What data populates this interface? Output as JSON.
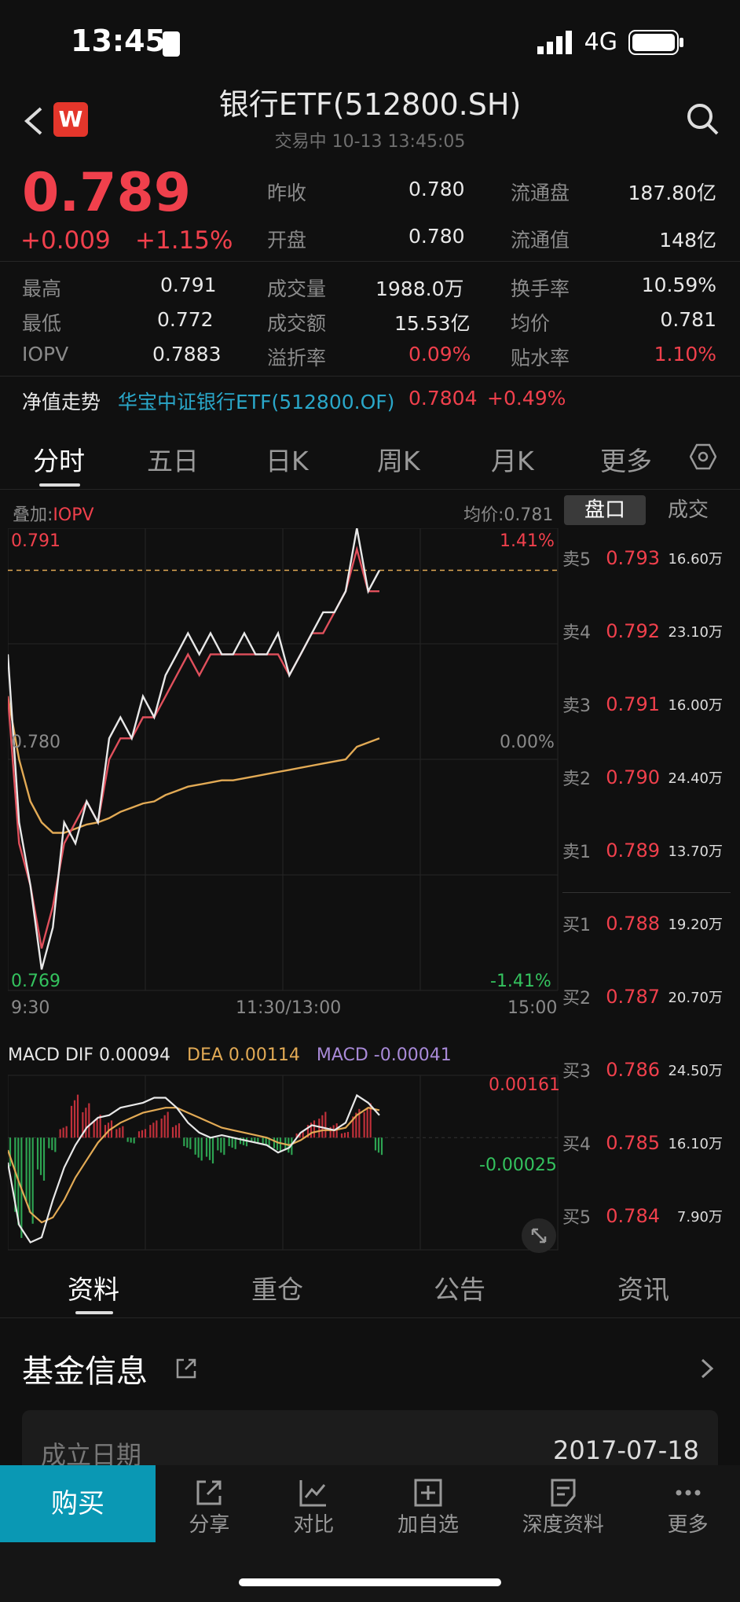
{
  "status": {
    "time": "13:45",
    "network": "4G"
  },
  "header": {
    "title": "银行ETF(512800.SH)",
    "subtitle": "交易中  10-13 13:45:05",
    "badge": "W"
  },
  "quote": {
    "price": "0.789",
    "change": "+0.009",
    "change_pct": "+1.15%",
    "fields": [
      {
        "label": "昨收",
        "value": "0.780",
        "label2": "流通盘",
        "value2": "187.80亿"
      },
      {
        "label": "开盘",
        "value": "0.780",
        "label2": "流通值",
        "value2": "148亿"
      }
    ],
    "grid": [
      {
        "l1": "最高",
        "v1": "0.791",
        "l2": "成交量",
        "v2": "1988.0万",
        "l3": "换手率",
        "v3": "10.59%"
      },
      {
        "l1": "最低",
        "v1": "0.772",
        "l2": "成交额",
        "v2": "15.53亿",
        "l3": "均价",
        "v3": "0.781"
      },
      {
        "l1": "IOPV",
        "v1": "0.7883",
        "l2": "溢折率",
        "v2": "0.09%",
        "l3": "贴水率",
        "v3": "1.10%"
      }
    ]
  },
  "nav_value": {
    "label": "净值走势",
    "fund": "华宝中证银行ETF(512800.OF)",
    "value": "0.7804",
    "pct": "+0.49%"
  },
  "chart_tabs": [
    "分时",
    "五日",
    "日K",
    "周K",
    "月K",
    "更多"
  ],
  "chart_header": {
    "overlay_prefix": "叠加:",
    "overlay": "IOPV",
    "avg": "均价:0.781"
  },
  "side_tabs": [
    "盘口",
    "成交"
  ],
  "chart_labels": {
    "top_price": "0.791",
    "top_pct": "1.41%",
    "mid_price": "0.780",
    "mid_pct": "0.00%",
    "bot_price": "0.769",
    "bot_pct": "-1.41%",
    "x0": "9:30",
    "x1": "11:30/13:00",
    "x2": "15:00"
  },
  "macd": {
    "dif": "MACD DIF 0.00094",
    "dea": "DEA 0.00114",
    "macd": "MACD -0.00041",
    "top": "0.00161",
    "bot": "-0.00025"
  },
  "orderbook": [
    {
      "label": "卖5",
      "price": "0.793",
      "vol": "16.60万"
    },
    {
      "label": "卖4",
      "price": "0.792",
      "vol": "23.10万"
    },
    {
      "label": "卖3",
      "price": "0.791",
      "vol": "16.00万"
    },
    {
      "label": "卖2",
      "price": "0.790",
      "vol": "24.40万"
    },
    {
      "label": "卖1",
      "price": "0.789",
      "vol": "13.70万"
    },
    {
      "label": "买1",
      "price": "0.788",
      "vol": "19.20万"
    },
    {
      "label": "买2",
      "price": "0.787",
      "vol": "20.70万"
    },
    {
      "label": "买3",
      "price": "0.786",
      "vol": "24.50万"
    },
    {
      "label": "买4",
      "price": "0.785",
      "vol": "16.10万"
    },
    {
      "label": "买5",
      "price": "0.784",
      "vol": "7.90万"
    }
  ],
  "info_tabs": [
    "资料",
    "重仓",
    "公告",
    "资讯"
  ],
  "fund_info": {
    "title": "基金信息",
    "est_label": "成立日期",
    "est_value": "2017-07-18"
  },
  "bottom_bar": {
    "buy": "购买",
    "items": [
      "分享",
      "对比",
      "加自选",
      "深度资料",
      "更多"
    ]
  },
  "chart_data": {
    "type": "line",
    "title": "",
    "x_range": [
      "9:30",
      "15:00"
    ],
    "ylim": [
      0.769,
      0.791
    ],
    "reference": 0.78,
    "series": [
      {
        "name": "",
        "color": "#e8e8e8",
        "values": [
          0.785,
          0.777,
          0.774,
          0.77,
          0.772,
          0.777,
          0.776,
          0.778,
          0.777,
          0.781,
          0.782,
          0.781,
          0.783,
          0.782,
          0.784,
          0.785,
          0.786,
          0.785,
          0.786,
          0.785,
          0.785,
          0.786,
          0.785,
          0.785,
          0.786,
          0.784,
          0.785,
          0.786,
          0.787,
          0.787,
          0.788,
          0.791,
          0.788,
          0.789
        ]
      },
      {
        "name": "IOPV",
        "color": "#e0505c",
        "values": [
          0.783,
          0.776,
          0.774,
          0.771,
          0.773,
          0.776,
          0.777,
          0.778,
          0.777,
          0.78,
          0.781,
          0.781,
          0.782,
          0.782,
          0.783,
          0.784,
          0.785,
          0.784,
          0.785,
          0.785,
          0.785,
          0.785,
          0.785,
          0.785,
          0.785,
          0.784,
          0.785,
          0.786,
          0.786,
          0.787,
          0.788,
          0.79,
          0.788,
          0.788
        ]
      },
      {
        "name": "",
        "color": "#e2aa55",
        "values": [
          0.783,
          0.78,
          0.778,
          0.777,
          0.7765,
          0.7765,
          0.7767,
          0.7769,
          0.777,
          0.7772,
          0.7775,
          0.7777,
          0.7779,
          0.778,
          0.7783,
          0.7785,
          0.7787,
          0.7788,
          0.7789,
          0.779,
          0.779,
          0.7791,
          0.7792,
          0.7793,
          0.7794,
          0.7795,
          0.7796,
          0.7797,
          0.7798,
          0.7799,
          0.78,
          0.7806,
          0.7808,
          0.781
        ]
      }
    ]
  },
  "macd_data": {
    "type": "bar",
    "ylim": [
      -0.0045,
      0.0025
    ],
    "hist": [
      -0.001,
      -0.0035,
      -0.003,
      -0.0015,
      -0.0005,
      0.0004,
      0.0015,
      0.0012,
      0.0008,
      0.0006,
      0.0004,
      -0.0002,
      0.0003,
      0.0006,
      0.0009,
      0.0005,
      -0.0004,
      -0.0008,
      -0.0009,
      -0.0006,
      -0.0004,
      -0.0003,
      -0.0002,
      -0.0003,
      -0.0005,
      -0.0006,
      0.0002,
      0.0006,
      0.0009,
      0.0005,
      0.0002,
      0.001,
      0.0012,
      -0.0006
    ],
    "dif": [
      -0.001,
      -0.0035,
      -0.0042,
      -0.004,
      -0.0025,
      -0.0012,
      -0.0003,
      0.0004,
      0.0008,
      0.0009,
      0.0012,
      0.0013,
      0.0014,
      0.0016,
      0.0016,
      0.0012,
      0.0006,
      0.0002,
      0.0,
      0.0001,
      0.0,
      -0.0001,
      -0.0002,
      -0.0003,
      -0.0006,
      -0.0004,
      0.0002,
      0.0005,
      0.0004,
      0.0003,
      0.0006,
      0.0017,
      0.0014,
      0.0009
    ],
    "dea": [
      -0.0005,
      -0.0018,
      -0.003,
      -0.0034,
      -0.0032,
      -0.0025,
      -0.0016,
      -0.0009,
      -0.0002,
      0.0003,
      0.0006,
      0.0008,
      0.001,
      0.0011,
      0.0012,
      0.0012,
      0.001,
      0.0008,
      0.0006,
      0.0004,
      0.0003,
      0.0002,
      0.0001,
      0.0,
      -0.0002,
      -0.0003,
      -0.0001,
      0.0002,
      0.0003,
      0.0003,
      0.0004,
      0.0009,
      0.0012,
      0.0011
    ]
  }
}
